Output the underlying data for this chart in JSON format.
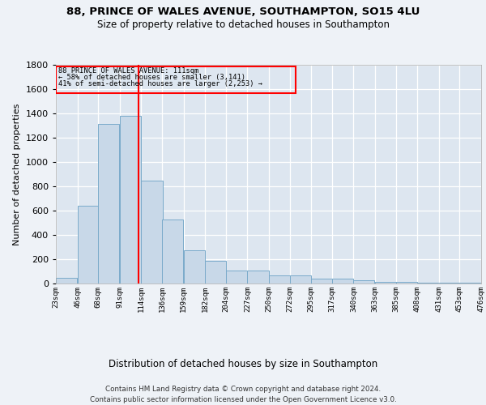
{
  "title1": "88, PRINCE OF WALES AVENUE, SOUTHAMPTON, SO15 4LU",
  "title2": "Size of property relative to detached houses in Southampton",
  "xlabel": "Distribution of detached houses by size in Southampton",
  "ylabel": "Number of detached properties",
  "footer1": "Contains HM Land Registry data © Crown copyright and database right 2024.",
  "footer2": "Contains public sector information licensed under the Open Government Licence v3.0.",
  "bar_color": "#c8d8e8",
  "bar_edge_color": "#7aaaca",
  "property_size": 111,
  "bin_edges": [
    23,
    46,
    68,
    91,
    114,
    136,
    159,
    182,
    204,
    227,
    250,
    272,
    295,
    317,
    340,
    363,
    385,
    408,
    431,
    453,
    476
  ],
  "bar_heights": [
    50,
    640,
    1310,
    1380,
    845,
    530,
    275,
    185,
    105,
    105,
    65,
    65,
    40,
    40,
    25,
    15,
    15,
    10,
    10,
    10
  ],
  "tick_labels": [
    "23sqm",
    "46sqm",
    "68sqm",
    "91sqm",
    "114sqm",
    "136sqm",
    "159sqm",
    "182sqm",
    "204sqm",
    "227sqm",
    "250sqm",
    "272sqm",
    "295sqm",
    "317sqm",
    "340sqm",
    "363sqm",
    "385sqm",
    "408sqm",
    "431sqm",
    "453sqm",
    "476sqm"
  ],
  "ylim": [
    0,
    1800
  ],
  "yticks": [
    0,
    200,
    400,
    600,
    800,
    1000,
    1200,
    1400,
    1600,
    1800
  ],
  "annotation_text1": "88 PRINCE OF WALES AVENUE: 111sqm",
  "annotation_text2": "← 58% of detached houses are smaller (3,141)",
  "annotation_text3": "41% of semi-detached houses are larger (2,253) →",
  "bg_color": "#eef2f7",
  "plot_bg": "#dde6f0"
}
